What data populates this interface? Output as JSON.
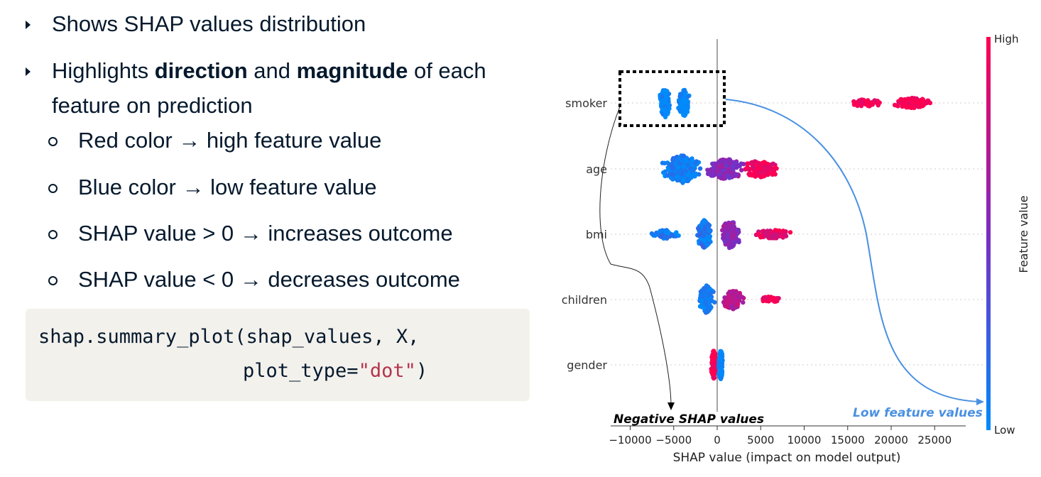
{
  "bullets": {
    "b1": "Shows SHAP values distribution",
    "b2_pre": "Highlights ",
    "b2_bold1": "direction",
    "b2_mid": " and ",
    "b2_bold2": "magnitude",
    "b2_post": " of each",
    "b2_line2": "feature on prediction",
    "sub": [
      "Red color → high feature value",
      "Blue color → low feature value",
      "SHAP value > 0 → increases outcome",
      "SHAP value < 0 → decreases outcome"
    ]
  },
  "code": {
    "line1": "shap.summary_plot(shap_values, X,",
    "line2_pre": "plot_type=",
    "line2_str": "\"dot\"",
    "line2_post": ")"
  },
  "chart_data": {
    "type": "scatter",
    "subtype": "shap-beeswarm",
    "features": [
      "smoker",
      "age",
      "bmi",
      "children",
      "gender"
    ],
    "xlabel": "SHAP value (impact on model output)",
    "xticks": [
      -10000,
      -5000,
      0,
      5000,
      10000,
      15000,
      20000,
      25000
    ],
    "xlim": [
      -11000,
      29000
    ],
    "colorbar": {
      "label": "Feature value",
      "high": "High",
      "low": "Low"
    },
    "colors": {
      "high": "#ff0051",
      "low": "#008bfb"
    },
    "clusters": [
      {
        "feature": "smoker",
        "groups": [
          {
            "center": -6000,
            "spread": 700,
            "height": 1.0,
            "n": 120,
            "color": 0.0
          },
          {
            "center": -3800,
            "spread": 700,
            "height": 0.9,
            "n": 110,
            "color": 0.0
          },
          {
            "center": 22500,
            "spread": 2500,
            "height": 0.35,
            "n": 110,
            "color": 1.0
          },
          {
            "center": 17000,
            "spread": 2500,
            "height": 0.25,
            "n": 60,
            "color": 1.0
          }
        ]
      },
      {
        "feature": "age",
        "groups": [
          {
            "center": -4000,
            "spread": 2300,
            "height": 0.95,
            "n": 240,
            "color": 0.05
          },
          {
            "center": 1000,
            "spread": 2500,
            "height": 0.7,
            "n": 180,
            "color": 0.55
          },
          {
            "center": 5000,
            "spread": 2300,
            "height": 0.6,
            "n": 150,
            "color": 0.95
          }
        ]
      },
      {
        "feature": "bmi",
        "groups": [
          {
            "center": -6000,
            "spread": 1800,
            "height": 0.3,
            "n": 70,
            "color": 0.1
          },
          {
            "center": -1500,
            "spread": 900,
            "height": 0.95,
            "n": 160,
            "color": 0.1
          },
          {
            "center": 1500,
            "spread": 1200,
            "height": 0.95,
            "n": 170,
            "color": 0.55
          },
          {
            "center": 6500,
            "spread": 2500,
            "height": 0.3,
            "n": 80,
            "color": 0.9
          }
        ]
      },
      {
        "feature": "children",
        "groups": [
          {
            "center": -1200,
            "spread": 900,
            "height": 0.95,
            "n": 170,
            "color": 0.05
          },
          {
            "center": 1800,
            "spread": 1400,
            "height": 0.65,
            "n": 140,
            "color": 0.7
          },
          {
            "center": 6000,
            "spread": 1400,
            "height": 0.2,
            "n": 30,
            "color": 1.0
          }
        ]
      },
      {
        "feature": "gender",
        "groups": [
          {
            "center": -400,
            "spread": 350,
            "height": 1.0,
            "n": 110,
            "color": 1.0
          },
          {
            "center": 400,
            "spread": 350,
            "height": 1.0,
            "n": 110,
            "color": 0.0
          }
        ]
      }
    ],
    "annotations": [
      {
        "text": "Negative SHAP values",
        "color": "#000000"
      },
      {
        "text": "Low feature values",
        "color": "#4a90e2"
      }
    ],
    "highlight_box_feature": "smoker"
  }
}
